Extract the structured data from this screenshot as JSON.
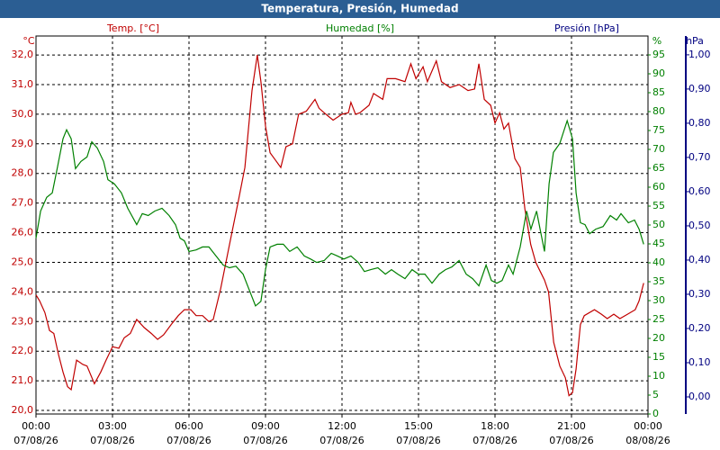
{
  "chart_data": {
    "type": "line",
    "title": "Temperatura, Presión, Humedad",
    "y_label": "Temp. [°C]",
    "y_unit": "°C",
    "y2_label": "Humedad [%]",
    "y2_unit": "%",
    "y3_label": "Presión [hPa]",
    "y3_unit": "hPa",
    "grid": true,
    "xlim": [
      0,
      24
    ],
    "xticks": [
      {
        "value": 0,
        "label": "00:00",
        "date": "07/08/26"
      },
      {
        "value": 3,
        "label": "03:00",
        "date": "07/08/26"
      },
      {
        "value": 6,
        "label": "06:00",
        "date": "07/08/26"
      },
      {
        "value": 9,
        "label": "09:00",
        "date": "07/08/26"
      },
      {
        "value": 12,
        "label": "12:00",
        "date": "07/08/26"
      },
      {
        "value": 15,
        "label": "15:00",
        "date": "07/08/26"
      },
      {
        "value": 18,
        "label": "18:00",
        "date": "07/08/26"
      },
      {
        "value": 21,
        "label": "21:00",
        "date": "07/08/26"
      },
      {
        "value": 24,
        "label": "00:00",
        "date": "08/08/26"
      }
    ],
    "ylim": [
      19.88,
      32.64
    ],
    "yticks": [
      {
        "value": 20,
        "label": "20,0"
      },
      {
        "value": 21,
        "label": "21,0"
      },
      {
        "value": 22,
        "label": "22,0"
      },
      {
        "value": 23,
        "label": "23,0"
      },
      {
        "value": 24,
        "label": "24,0"
      },
      {
        "value": 25,
        "label": "25,0"
      },
      {
        "value": 26,
        "label": "26,0"
      },
      {
        "value": 27,
        "label": "27,0"
      },
      {
        "value": 28,
        "label": "28,0"
      },
      {
        "value": 29,
        "label": "29,0"
      },
      {
        "value": 30,
        "label": "30,0"
      },
      {
        "value": 31,
        "label": "31,0"
      },
      {
        "value": 32,
        "label": "32,0"
      }
    ],
    "y2lim": [
      0,
      100
    ],
    "y2ticks": [
      0,
      5,
      10,
      15,
      20,
      25,
      30,
      35,
      40,
      45,
      50,
      55,
      60,
      65,
      70,
      75,
      80,
      85,
      90,
      95
    ],
    "y3lim": [
      -0.05,
      1.055
    ],
    "y3ticks": [
      {
        "value": 0,
        "label": "0,00"
      },
      {
        "value": 0.1,
        "label": "0,10"
      },
      {
        "value": 0.2,
        "label": "0,20"
      },
      {
        "value": 0.3,
        "label": "0,30"
      },
      {
        "value": 0.4,
        "label": "0,40"
      },
      {
        "value": 0.5,
        "label": "0,50"
      },
      {
        "value": 0.6,
        "label": "0,60"
      },
      {
        "value": 0.7,
        "label": "0,70"
      },
      {
        "value": 0.8,
        "label": "0,80"
      },
      {
        "value": 0.9,
        "label": "0,90"
      },
      {
        "value": 1,
        "label": "1,00"
      }
    ],
    "y_color": "#c00000",
    "y2_color": "#008000",
    "y3_color": "#000080",
    "series": [
      {
        "name": "Temp. [°C]",
        "color": "#c00000",
        "axis": "y",
        "x": [
          0,
          0.14,
          0.35,
          0.53,
          0.7,
          0.88,
          1.06,
          1.24,
          1.38,
          1.59,
          1.84,
          2.0,
          2.29,
          2.54,
          2.75,
          3.0,
          3.25,
          3.46,
          3.7,
          3.95,
          4.24,
          4.52,
          4.77,
          5.0,
          5.3,
          5.58,
          5.82,
          6.07,
          6.28,
          6.53,
          6.78,
          6.95,
          7.24,
          7.59,
          7.94,
          8.19,
          8.47,
          8.68,
          8.82,
          9.0,
          9.18,
          9.35,
          9.6,
          9.8,
          10.06,
          10.3,
          10.6,
          10.94,
          11.1,
          11.37,
          11.65,
          12.0,
          12.25,
          12.35,
          12.53,
          12.7,
          13.06,
          13.24,
          13.6,
          13.77,
          14.1,
          14.47,
          14.7,
          14.9,
          15.18,
          15.35,
          15.7,
          15.9,
          16.24,
          16.6,
          16.94,
          17.2,
          17.37,
          17.58,
          17.83,
          18.0,
          18.18,
          18.35,
          18.53,
          18.78,
          18.99,
          19.17,
          19.4,
          19.6,
          19.77,
          19.94,
          20.1,
          20.3,
          20.54,
          20.76,
          20.9,
          21.04,
          21.18,
          21.35,
          21.5,
          21.9,
          22.17,
          22.4,
          22.66,
          22.9,
          23.2,
          23.5,
          23.65,
          23.83
        ],
        "values": [
          23.9,
          23.7,
          23.3,
          22.7,
          22.6,
          21.9,
          21.3,
          20.8,
          20.7,
          21.7,
          21.55,
          21.5,
          20.9,
          21.3,
          21.7,
          22.15,
          22.1,
          22.45,
          22.6,
          23.07,
          22.8,
          22.6,
          22.4,
          22.55,
          22.9,
          23.2,
          23.4,
          23.4,
          23.2,
          23.2,
          23.0,
          23.07,
          24.1,
          25.6,
          27.1,
          28.2,
          30.8,
          32.0,
          31.1,
          29.6,
          28.7,
          28.5,
          28.2,
          28.9,
          29.0,
          30.0,
          30.1,
          30.5,
          30.2,
          30.0,
          29.8,
          30.0,
          30.05,
          30.4,
          30.0,
          30.05,
          30.3,
          30.7,
          30.5,
          31.2,
          31.2,
          31.1,
          31.7,
          31.2,
          31.6,
          31.1,
          31.8,
          31.1,
          30.9,
          31.0,
          30.8,
          30.85,
          31.7,
          30.5,
          30.3,
          29.7,
          30.05,
          29.5,
          29.7,
          28.5,
          28.2,
          26.8,
          25.6,
          25.0,
          24.7,
          24.4,
          24.0,
          22.3,
          21.5,
          21.1,
          20.5,
          20.6,
          21.4,
          22.9,
          23.2,
          23.4,
          23.25,
          23.1,
          23.25,
          23.1,
          23.25,
          23.4,
          23.7,
          24.3
        ]
      },
      {
        "name": "Humedad [%]",
        "color": "#008000",
        "axis": "y2",
        "x": [
          0,
          0.18,
          0.42,
          0.64,
          0.85,
          1.06,
          1.2,
          1.38,
          1.55,
          1.76,
          2.0,
          2.19,
          2.4,
          2.65,
          2.82,
          3.07,
          3.35,
          3.6,
          3.95,
          4.17,
          4.4,
          4.66,
          4.94,
          5.22,
          5.47,
          5.65,
          5.82,
          6.0,
          6.28,
          6.53,
          6.78,
          7.06,
          7.34,
          7.59,
          7.84,
          8.12,
          8.4,
          8.61,
          8.82,
          9.0,
          9.18,
          9.46,
          9.7,
          9.95,
          10.24,
          10.52,
          10.77,
          11.01,
          11.3,
          11.58,
          11.82,
          12.07,
          12.35,
          12.64,
          12.88,
          13.13,
          13.41,
          13.7,
          13.94,
          14.19,
          14.47,
          14.75,
          15.0,
          15.25,
          15.53,
          15.81,
          16.06,
          16.31,
          16.59,
          16.87,
          17.12,
          17.37,
          17.65,
          17.86,
          18.07,
          18.28,
          18.53,
          18.71,
          18.99,
          19.24,
          19.41,
          19.63,
          19.77,
          19.94,
          20.12,
          20.29,
          20.54,
          20.83,
          21.04,
          21.18,
          21.35,
          21.53,
          21.71,
          21.95,
          22.24,
          22.52,
          22.77,
          22.94,
          23.23,
          23.47,
          23.65,
          23.83
        ],
        "values": [
          46.5,
          53.7,
          57.3,
          58.5,
          65.6,
          72.8,
          75.2,
          72.8,
          64.9,
          66.8,
          68,
          72,
          70.4,
          66.8,
          62,
          60.9,
          58.5,
          54.4,
          50.1,
          53,
          52.5,
          53.7,
          54.4,
          52.5,
          50.1,
          46.5,
          45.8,
          43,
          43.4,
          44.2,
          44.2,
          41.8,
          39.4,
          38.7,
          39.1,
          37,
          32.2,
          28.6,
          29.8,
          38.2,
          44.2,
          44.9,
          44.9,
          43,
          44.2,
          41.8,
          41,
          40.1,
          40.6,
          42.5,
          41.8,
          41,
          41.8,
          40.1,
          37.7,
          38.2,
          38.7,
          37,
          38.2,
          37,
          35.8,
          38.2,
          37,
          37,
          34.6,
          37,
          38.2,
          38.9,
          40.6,
          37,
          35.8,
          33.9,
          39.4,
          35.3,
          34.6,
          35.3,
          39.4,
          37,
          44.2,
          53.7,
          48.9,
          53.7,
          48.9,
          43,
          60.9,
          69.2,
          71.6,
          77.6,
          72.8,
          58.5,
          50.6,
          50.1,
          47.7,
          48.9,
          49.6,
          52.5,
          51.3,
          53,
          50.6,
          51.3,
          48.9,
          44.9
        ]
      }
    ]
  }
}
